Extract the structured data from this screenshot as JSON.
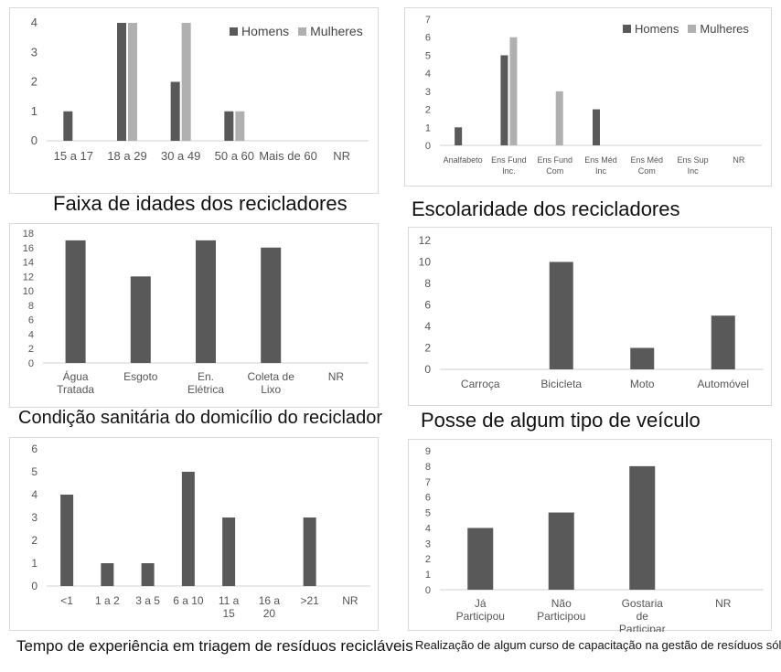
{
  "colors": {
    "homens": "#595959",
    "mulheres": "#b0b0b0",
    "single": "#595959",
    "axis": "#d0d0d0",
    "tick": "#555555"
  },
  "chart_data": [
    {
      "type": "bar",
      "title": "Faixa de idades dos recicladores",
      "categories": [
        "15 a 17",
        "18 a 29",
        "30 a 49",
        "50 a 60",
        "Mais de 60",
        "NR"
      ],
      "series": [
        {
          "name": "Homens",
          "values": [
            1,
            4,
            2,
            1,
            0,
            0
          ]
        },
        {
          "name": "Mulheres",
          "values": [
            0,
            4,
            4,
            1,
            0,
            0
          ]
        }
      ],
      "yticks": [
        0,
        1,
        2,
        3,
        4
      ],
      "ylim": [
        0,
        4
      ],
      "legend": "top-right"
    },
    {
      "type": "bar",
      "title": "Escolaridade dos recicladores",
      "categories": [
        "Analfabeto",
        "Ens Fund Inc.",
        "Ens Fund Com",
        "Ens Méd Inc",
        "Ens Méd Com",
        "Ens Sup Inc",
        "NR"
      ],
      "series": [
        {
          "name": "Homens",
          "values": [
            1,
            5,
            0,
            2,
            0,
            0,
            0
          ]
        },
        {
          "name": "Mulheres",
          "values": [
            0,
            6,
            3,
            0,
            0,
            0,
            0
          ]
        }
      ],
      "yticks": [
        0,
        1,
        2,
        3,
        4,
        5,
        6,
        7
      ],
      "ylim": [
        0,
        7
      ],
      "legend": "top-right"
    },
    {
      "type": "bar",
      "title": "Condição sanitária do domicílio do reciclador",
      "categories": [
        "Água Tratada",
        "Esgoto",
        "En. Elétrica",
        "Coleta de Lixo",
        "NR"
      ],
      "values": [
        17,
        12,
        17,
        16,
        0
      ],
      "yticks": [
        0,
        2,
        4,
        6,
        8,
        10,
        12,
        14,
        16,
        18
      ],
      "ylim": [
        0,
        18
      ]
    },
    {
      "type": "bar",
      "title": "Posse de algum tipo de veículo",
      "categories": [
        "Carroça",
        "Bicicleta",
        "Moto",
        "Automóvel"
      ],
      "values": [
        0,
        10,
        2,
        5
      ],
      "yticks": [
        0,
        2,
        4,
        6,
        8,
        10,
        12
      ],
      "ylim": [
        0,
        12
      ]
    },
    {
      "type": "bar",
      "title": "Tempo de experiência em triagem de resíduos recicláveis",
      "categories": [
        "<1",
        "1 a 2",
        "3 a 5",
        "6 a 10",
        "11 a 15",
        "16 a 20",
        ">21",
        "NR"
      ],
      "values": [
        4,
        1,
        1,
        5,
        3,
        0,
        3,
        0
      ],
      "yticks": [
        0,
        1,
        2,
        3,
        4,
        5,
        6
      ],
      "ylim": [
        0,
        6
      ]
    },
    {
      "type": "bar",
      "title": "Realização de algum curso de capacitação na gestão de resíduos sólidos",
      "categories": [
        "Já Participou",
        "Não Participou",
        "Gostaria de Participar",
        "NR"
      ],
      "values": [
        4,
        5,
        8,
        0
      ],
      "yticks": [
        0,
        1,
        2,
        3,
        4,
        5,
        6,
        7,
        8,
        9
      ],
      "ylim": [
        0,
        9
      ]
    }
  ]
}
